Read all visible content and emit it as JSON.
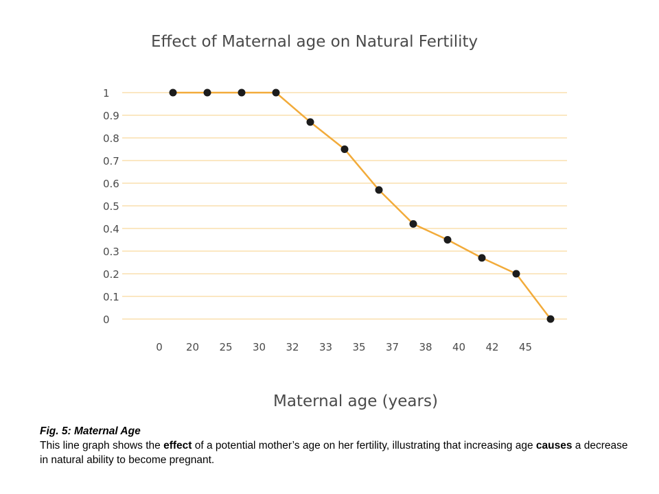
{
  "chart_data": {
    "type": "line",
    "title": "Effect of Maternal age on Natural Fertility",
    "xlabel": "Maternal age (years)",
    "ylabel": "",
    "x_tick_labels": [
      "0",
      "20",
      "25",
      "30",
      "32",
      "33",
      "35",
      "37",
      "38",
      "40",
      "42",
      "45"
    ],
    "y_tick_labels": [
      "0",
      "0.1",
      "0.2",
      "0.3",
      "0.4",
      "0.5",
      "0.6",
      "0.7",
      "0.8",
      "0.9",
      "1"
    ],
    "ylim": [
      0,
      1
    ],
    "grid": true,
    "series": [
      {
        "name": "",
        "color": "#f2ab3a",
        "marker_color": "#1c1c1c",
        "x": [
          0,
          1,
          2,
          3,
          4,
          5,
          6,
          7,
          8,
          9,
          10,
          11
        ],
        "values": [
          1,
          1,
          1,
          1,
          0.87,
          0.75,
          0.57,
          0.42,
          0.35,
          0.27,
          0.2,
          0
        ]
      }
    ],
    "grid_color": "#fbe7c2"
  },
  "caption": {
    "title": "Fig. 5: Maternal Age",
    "line_parts": [
      "This line graph shows the ",
      "effect",
      " of a potential mother’s age on her fertility, illustrating that increasing age ",
      "causes",
      " a decrease in natural ability to become pregnant."
    ]
  }
}
